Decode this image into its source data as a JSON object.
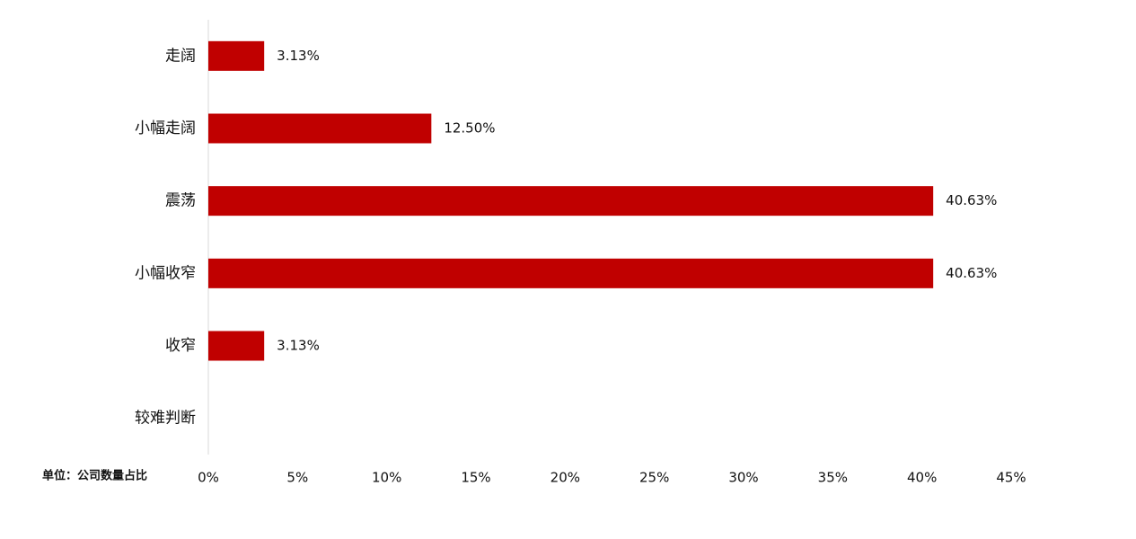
{
  "chart_data": {
    "type": "bar",
    "orientation": "horizontal",
    "annotation": "单位：公司数量占比",
    "categories": [
      "走阔",
      "小幅走阔",
      "震荡",
      "小幅收窄",
      "收窄",
      "较难判断"
    ],
    "values": [
      3.13,
      12.5,
      40.63,
      40.63,
      3.13,
      null
    ],
    "value_labels": [
      "3.13%",
      "12.50%",
      "40.63%",
      "40.63%",
      "3.13%",
      null
    ],
    "color": "#c00000",
    "xlim": [
      0,
      45
    ],
    "xticks": [
      {
        "value": 0,
        "label": "0%"
      },
      {
        "value": 5,
        "label": "5%"
      },
      {
        "value": 10,
        "label": "10%"
      },
      {
        "value": 15,
        "label": "15%"
      },
      {
        "value": 20,
        "label": "20%"
      },
      {
        "value": 25,
        "label": "25%"
      },
      {
        "value": 30,
        "label": "30%"
      },
      {
        "value": 35,
        "label": "35%"
      },
      {
        "value": 40,
        "label": "40%"
      },
      {
        "value": 45,
        "label": "45%"
      }
    ],
    "grid": false
  }
}
